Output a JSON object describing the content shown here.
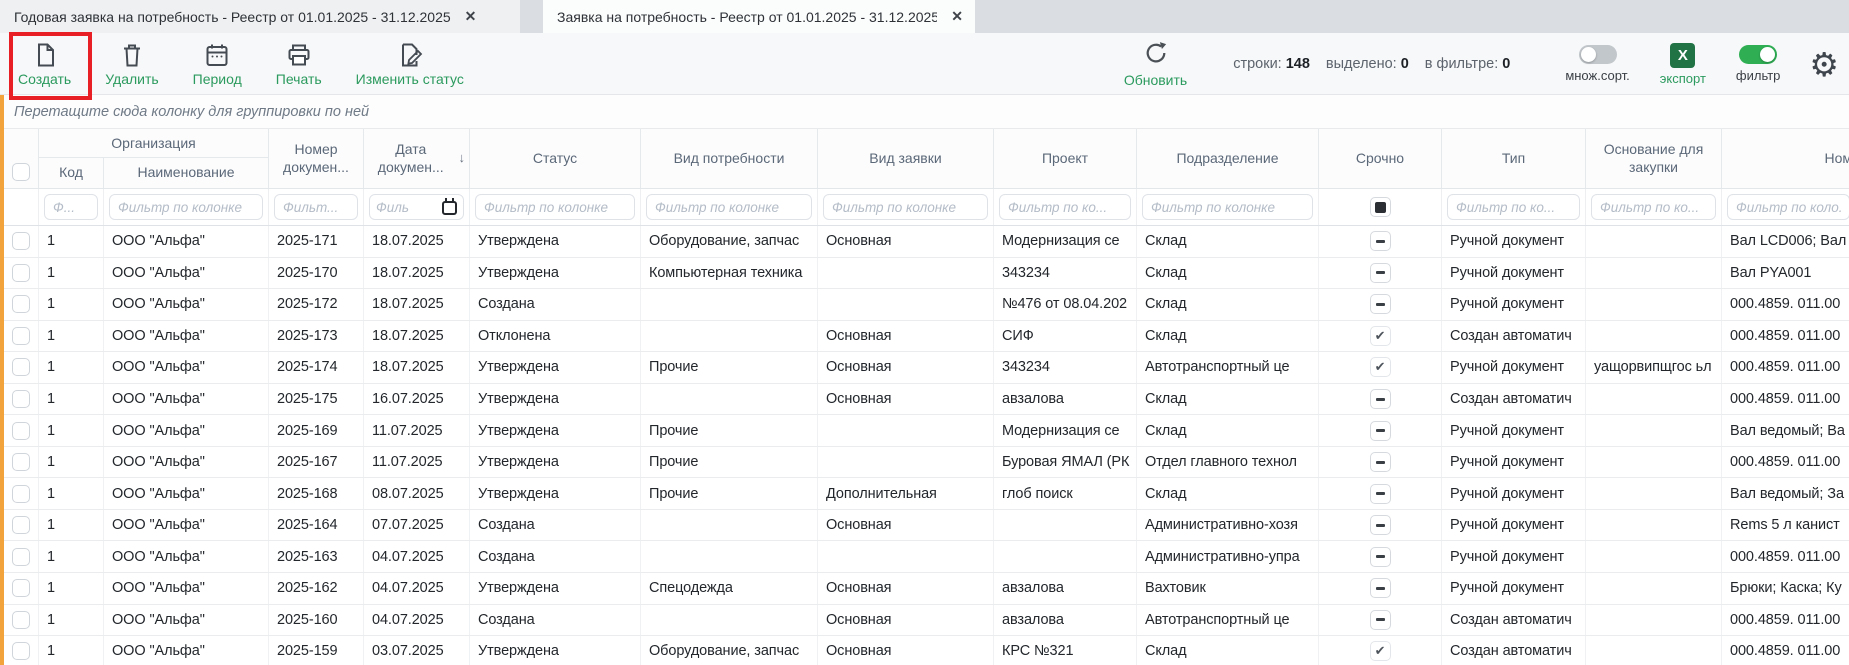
{
  "tabs": [
    {
      "title": "Годовая заявка на потребность - Реестр от 01.01.2025 - 31.12.2025",
      "close_glyph": "✕",
      "active": false
    },
    {
      "title": "Заявка на потребность - Реестр от 01.01.2025 - 31.12.2025",
      "close_glyph": "✕",
      "active": true
    }
  ],
  "toolbar": {
    "create_label": "Создать",
    "delete_label": "Удалить",
    "period_label": "Период",
    "print_label": "Печать",
    "change_status_label": "Изменить статус",
    "refresh_label": "Обновить",
    "stats": {
      "rows_label": "строки:",
      "rows_value": "148",
      "selected_label": "выделено:",
      "selected_value": "0",
      "filtered_label": "в фильтре:",
      "filtered_value": "0"
    },
    "multisort_label": "множ.сорт.",
    "multisort_on": false,
    "export_label": "экспорт",
    "export_icon_letter": "X",
    "filter_label": "фильтр",
    "filter_on": true
  },
  "group_bar_text": "Перетащите сюда колонку для группировки по ней",
  "table": {
    "org_group_label": "Организация",
    "sort_glyph": "↓",
    "columns": {
      "code": {
        "label": "Код",
        "placeholder": "Ф..."
      },
      "name": {
        "label": "Наименование",
        "placeholder": "Фильтр по колонке"
      },
      "number": {
        "label": "Номер докумен...",
        "placeholder": "Фильт..."
      },
      "date": {
        "label": "Дата докумен...",
        "placeholder": "Филь"
      },
      "status": {
        "label": "Статус",
        "placeholder": "Фильтр по колонке"
      },
      "need": {
        "label": "Вид потребности",
        "placeholder": "Фильтр по колонке"
      },
      "req": {
        "label": "Вид заявки",
        "placeholder": "Фильтр по колонке"
      },
      "project": {
        "label": "Проект",
        "placeholder": "Фильтр по ко..."
      },
      "dept": {
        "label": "Подразделение",
        "placeholder": "Фильтр по колонке"
      },
      "urgent": {
        "label": "Срочно"
      },
      "type": {
        "label": "Тип",
        "placeholder": "Фильтр по ко..."
      },
      "basis": {
        "label": "Основание для закупки",
        "placeholder": "Фильтр по ко..."
      },
      "nomen": {
        "label": "Номенклатура",
        "placeholder": "Фильтр по коло..."
      }
    },
    "rows": [
      {
        "code": "1",
        "name": "ООО \"Альфа\"",
        "number": "2025-171",
        "date": "18.07.2025",
        "status": "Утверждена",
        "need": "Оборудование, запчас",
        "req": "Основная",
        "project": "Модернизация се",
        "dept": "Склад",
        "urgent": "dash",
        "type": "Ручной документ",
        "basis": "",
        "nomen": "Вал LCD006; Вал"
      },
      {
        "code": "1",
        "name": "ООО \"Альфа\"",
        "number": "2025-170",
        "date": "18.07.2025",
        "status": "Утверждена",
        "need": "Компьютерная техника",
        "req": "",
        "project": "343234",
        "dept": "Склад",
        "urgent": "dash",
        "type": "Ручной документ",
        "basis": "",
        "nomen": "Вал PYA001"
      },
      {
        "code": "1",
        "name": "ООО \"Альфа\"",
        "number": "2025-172",
        "date": "18.07.2025",
        "status": "Создана",
        "need": "",
        "req": "",
        "project": "№476 от 08.04.202",
        "dept": "Склад",
        "urgent": "dash",
        "type": "Ручной документ",
        "basis": "",
        "nomen": "000.4859. 011.00"
      },
      {
        "code": "1",
        "name": "ООО \"Альфа\"",
        "number": "2025-173",
        "date": "18.07.2025",
        "status": "Отклонена",
        "need": "",
        "req": "Основная",
        "project": "СИФ",
        "dept": "Склад",
        "urgent": "check",
        "type": "Создан автоматич",
        "basis": "",
        "nomen": "000.4859. 011.00"
      },
      {
        "code": "1",
        "name": "ООО \"Альфа\"",
        "number": "2025-174",
        "date": "18.07.2025",
        "status": "Утверждена",
        "need": "Прочие",
        "req": "Основная",
        "project": "343234",
        "dept": "Автотранспортный це",
        "urgent": "check",
        "type": "Ручной документ",
        "basis": "уащорвипщгос ьл",
        "nomen": "000.4859. 011.00"
      },
      {
        "code": "1",
        "name": "ООО \"Альфа\"",
        "number": "2025-175",
        "date": "16.07.2025",
        "status": "Утверждена",
        "need": "",
        "req": "Основная",
        "project": "авзалова",
        "dept": "Склад",
        "urgent": "dash",
        "type": "Создан автоматич",
        "basis": "",
        "nomen": "000.4859. 011.00"
      },
      {
        "code": "1",
        "name": "ООО \"Альфа\"",
        "number": "2025-169",
        "date": "11.07.2025",
        "status": "Утверждена",
        "need": "Прочие",
        "req": "",
        "project": "Модернизация се",
        "dept": "Склад",
        "urgent": "dash",
        "type": "Ручной документ",
        "basis": "",
        "nomen": "Вал ведомый; Ва"
      },
      {
        "code": "1",
        "name": "ООО \"Альфа\"",
        "number": "2025-167",
        "date": "11.07.2025",
        "status": "Утверждена",
        "need": "Прочие",
        "req": "",
        "project": "Буровая ЯМАЛ (РК",
        "dept": "Отдел главного технол",
        "urgent": "dash",
        "type": "Ручной документ",
        "basis": "",
        "nomen": "000.4859. 011.00"
      },
      {
        "code": "1",
        "name": "ООО \"Альфа\"",
        "number": "2025-168",
        "date": "08.07.2025",
        "status": "Утверждена",
        "need": "Прочие",
        "req": "Дополнительная",
        "project": "глоб поиск",
        "dept": "Склад",
        "urgent": "dash",
        "type": "Ручной документ",
        "basis": "",
        "nomen": "Вал ведомый; За"
      },
      {
        "code": "1",
        "name": "ООО \"Альфа\"",
        "number": "2025-164",
        "date": "07.07.2025",
        "status": "Создана",
        "need": "",
        "req": "Основная",
        "project": "",
        "dept": "Административно-хозя",
        "urgent": "dash",
        "type": "Ручной документ",
        "basis": "",
        "nomen": "Rems 5 л канист"
      },
      {
        "code": "1",
        "name": "ООО \"Альфа\"",
        "number": "2025-163",
        "date": "04.07.2025",
        "status": "Создана",
        "need": "",
        "req": "",
        "project": "",
        "dept": "Административно-упра",
        "urgent": "dash",
        "type": "Ручной документ",
        "basis": "",
        "nomen": "000.4859. 011.00"
      },
      {
        "code": "1",
        "name": "ООО \"Альфа\"",
        "number": "2025-162",
        "date": "04.07.2025",
        "status": "Утверждена",
        "need": "Спецодежда",
        "req": "Основная",
        "project": "авзалова",
        "dept": "Вахтовик",
        "urgent": "dash",
        "type": "Ручной документ",
        "basis": "",
        "nomen": "Брюки; Каска; Ку"
      },
      {
        "code": "1",
        "name": "ООО \"Альфа\"",
        "number": "2025-160",
        "date": "04.07.2025",
        "status": "Создана",
        "need": "",
        "req": "Основная",
        "project": "авзалова",
        "dept": "Автотранспортный це",
        "urgent": "dash",
        "type": "Создан автоматич",
        "basis": "",
        "nomen": "000.4859. 011.00"
      },
      {
        "code": "1",
        "name": "ООО \"Альфа\"",
        "number": "2025-159",
        "date": "03.07.2025",
        "status": "Утверждена",
        "need": "Оборудование, запчас",
        "req": "Основная",
        "project": "КРС №321",
        "dept": "Склад",
        "urgent": "check",
        "type": "Создан автоматич",
        "basis": "",
        "nomen": "000.4859. 011.00"
      }
    ]
  },
  "colors": {
    "accent_green": "#2b9a5e",
    "toggle_on_green": "#2fae54",
    "excel_green": "#217346",
    "annotation_red": "#e81f24",
    "group_stripe_orange": "#f2a33c"
  }
}
